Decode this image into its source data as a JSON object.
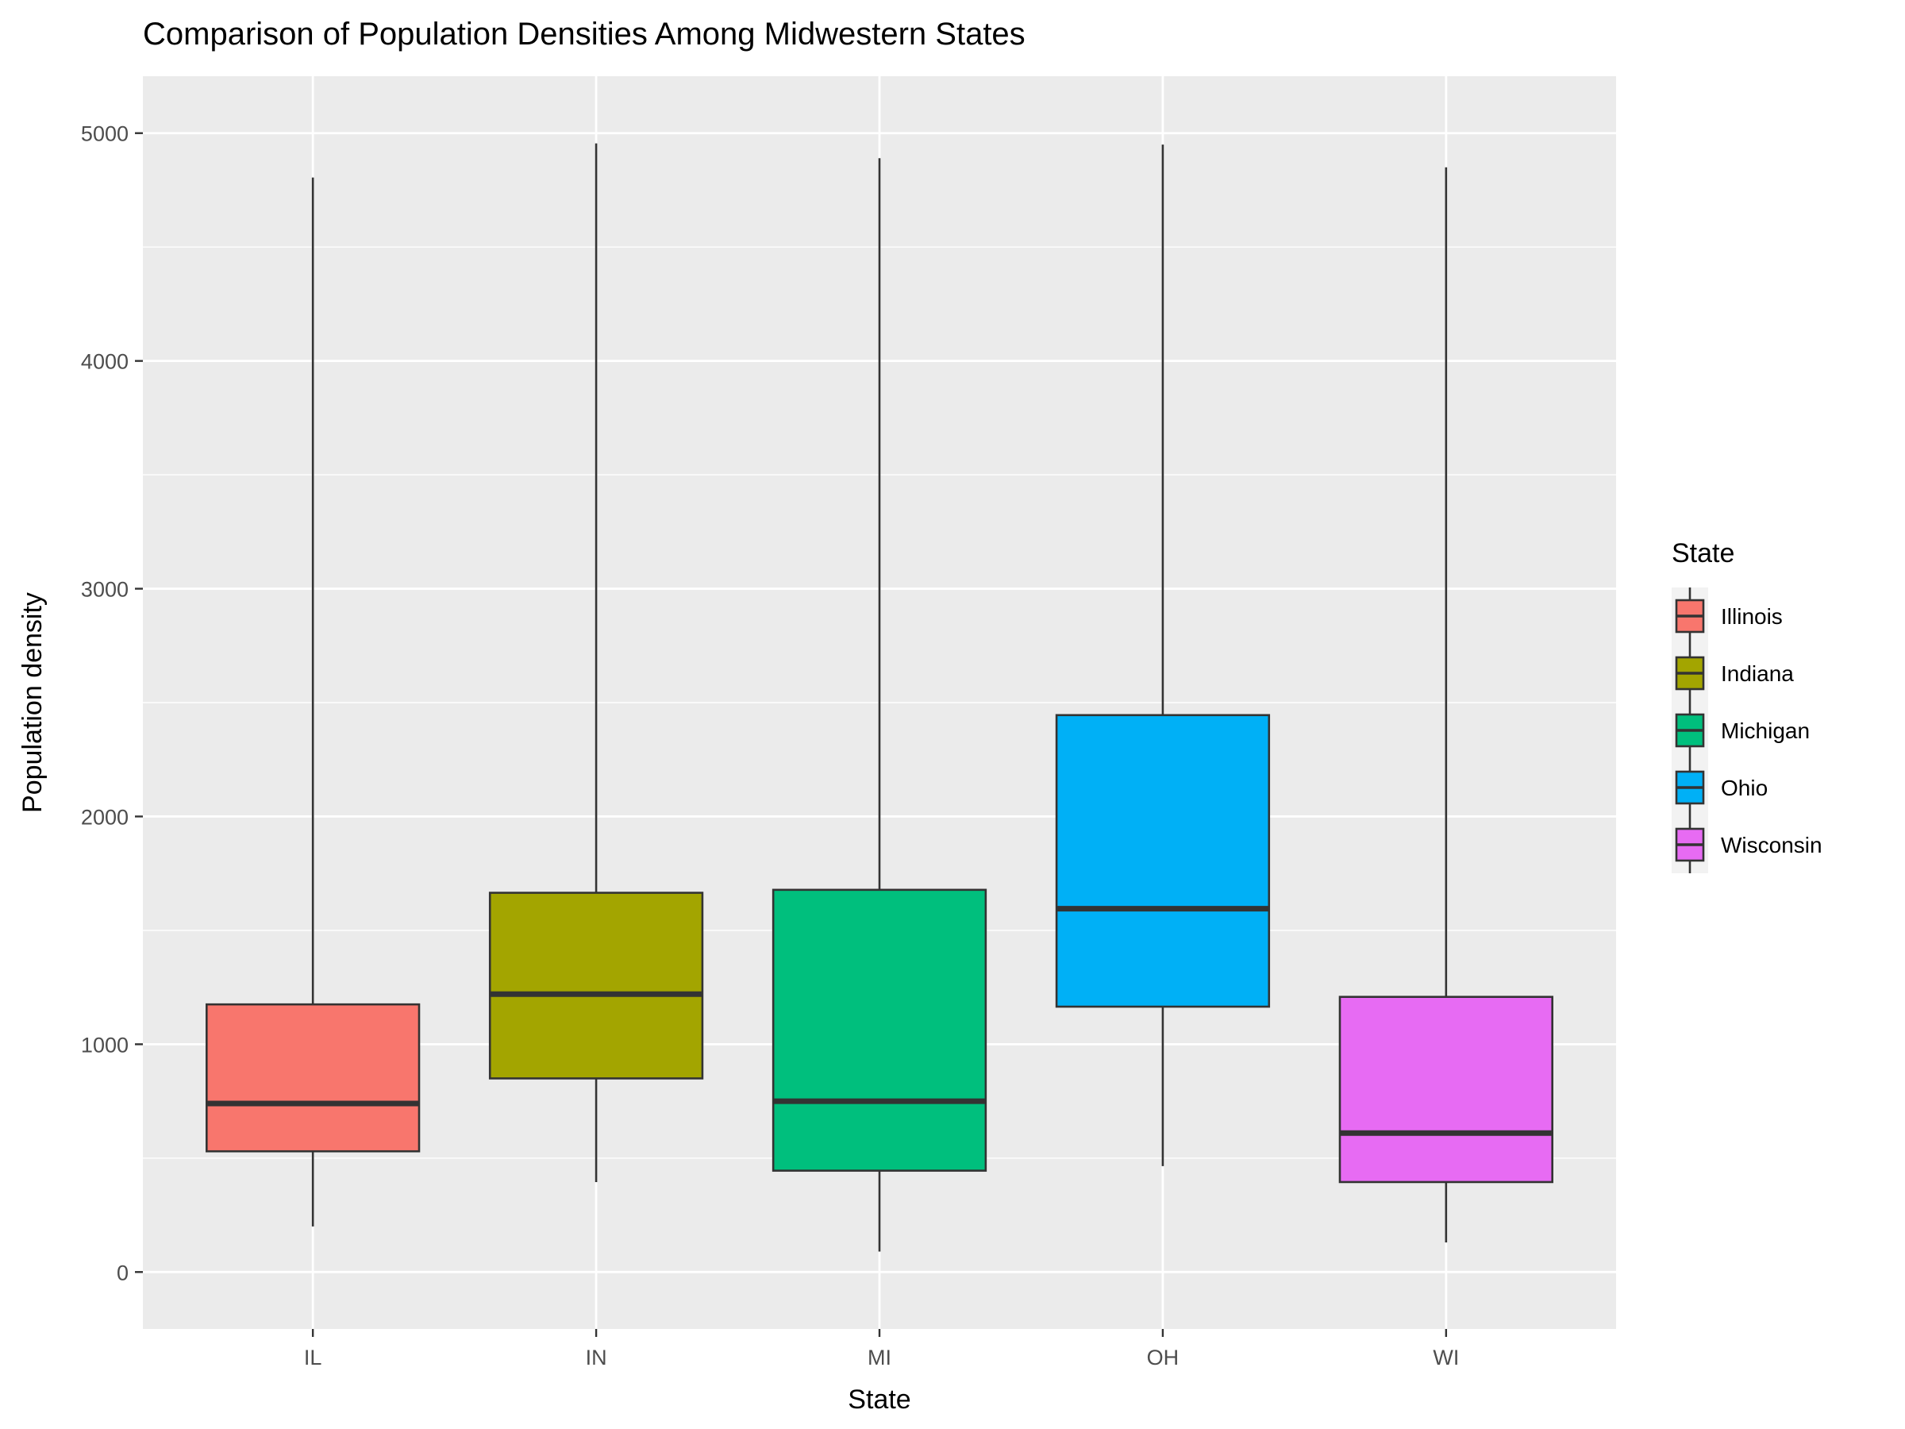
{
  "chart_data": {
    "type": "boxplot",
    "title": "Comparison of Population Densities Among Midwestern States",
    "xlabel": "State",
    "ylabel": "Population density",
    "ylim": [
      -250,
      5250
    ],
    "yticks": [
      0,
      1000,
      2000,
      3000,
      4000,
      5000
    ],
    "grid": true,
    "legend_position": "right",
    "legend_title": "State",
    "categories": [
      "IL",
      "IN",
      "MI",
      "OH",
      "WI"
    ],
    "series": [
      {
        "name": "Illinois",
        "category": "IL",
        "color": "#F8766D",
        "min": 200,
        "q1": 530,
        "median": 740,
        "q3": 1175,
        "max": 4805
      },
      {
        "name": "Indiana",
        "category": "IN",
        "color": "#A3A500",
        "min": 395,
        "q1": 850,
        "median": 1220,
        "q3": 1665,
        "max": 4955
      },
      {
        "name": "Michigan",
        "category": "MI",
        "color": "#00BF7D",
        "min": 90,
        "q1": 445,
        "median": 750,
        "q3": 1678,
        "max": 4890
      },
      {
        "name": "Ohio",
        "category": "OH",
        "color": "#00B0F6",
        "min": 465,
        "q1": 1165,
        "median": 1595,
        "q3": 2445,
        "max": 4950
      },
      {
        "name": "Wisconsin",
        "category": "WI",
        "color": "#E76BF3",
        "min": 130,
        "q1": 395,
        "median": 610,
        "q3": 1208,
        "max": 4850
      }
    ]
  }
}
